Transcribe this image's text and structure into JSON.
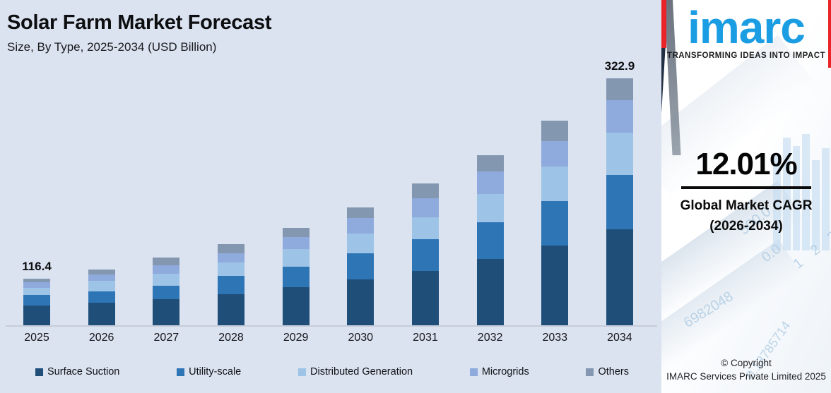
{
  "header": {
    "title": "Solar Farm Market Forecast",
    "subtitle": "Size, By Type, 2025-2034 (USD Billion)"
  },
  "chart_data": {
    "type": "bar",
    "stacked": true,
    "title": "Solar Farm Market Forecast",
    "subtitle": "Size, By Type, 2025-2034 (USD Billion)",
    "unit": "USD Billion",
    "xlabel": "",
    "ylabel": "",
    "gridlines": false,
    "legend_position": "bottom",
    "categories": [
      "2025",
      "2026",
      "2027",
      "2028",
      "2029",
      "2030",
      "2031",
      "2032",
      "2033",
      "2034"
    ],
    "series": [
      {
        "name": "Surface Suction",
        "color": "#1F4E79",
        "values": [
          48.6,
          52.2,
          57.2,
          63.2,
          71.4,
          79.4,
          88.3,
          99.8,
          111.8,
          125.5
        ]
      },
      {
        "name": "Utility-scale",
        "color": "#2E75B6",
        "values": [
          27.8,
          26.1,
          28.6,
          35.8,
          39.0,
          46.4,
          50.9,
          55.7,
          62.8,
          71.0
        ]
      },
      {
        "name": "Distributed Generation",
        "color": "#9DC3E6",
        "values": [
          17.4,
          24.4,
          25.6,
          27.5,
          32.5,
          34.2,
          36.2,
          43.1,
          49.0,
          55.4
        ]
      },
      {
        "name": "Microgrids",
        "color": "#8FAADC",
        "values": [
          13.9,
          14.7,
          18.1,
          17.9,
          22.1,
          26.9,
          30.6,
          33.6,
          35.3,
          42.4
        ]
      },
      {
        "name": "Others",
        "color": "#8497B0",
        "values": [
          8.7,
          13.0,
          16.5,
          19.2,
          18.2,
          18.3,
          23.8,
          25.2,
          29.4,
          28.6
        ]
      }
    ],
    "totals": [
      116.4,
      130.4,
      146.0,
      163.6,
      183.2,
      205.2,
      229.8,
      257.4,
      288.3,
      322.9
    ],
    "annotated_totals": {
      "2025": "116.4",
      "2034": "322.9"
    }
  },
  "sidebar": {
    "logo_text": "imarc",
    "logo_tagline": "TRANSFORMING IDEAS INTO IMPACT",
    "cagr_value": "12.01%",
    "cagr_label_line1": "Global Market CAGR",
    "cagr_label_line2": "(2026-2034)",
    "copyright_line1": "© Copyright",
    "copyright_line2": "IMARC Services Private Limited 2025",
    "watermarks": [
      "500.0",
      "0.0",
      "1 2 3 4",
      "6982048",
      "0.13785714"
    ]
  },
  "colors": {
    "chart_background": "#DBE2F0",
    "panel_background": "#FFFFFF",
    "logo_blue": "#1A9DE2",
    "accent_red": "#E92327",
    "axis_line": "#C6CCD8"
  }
}
